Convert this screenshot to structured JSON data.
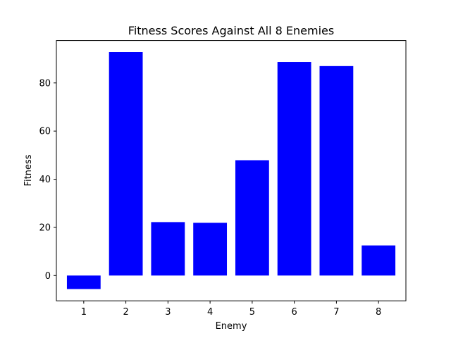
{
  "chart_data": {
    "type": "bar",
    "title": "Fitness Scores Against All 8 Enemies",
    "xlabel": "Enemy",
    "ylabel": "Fitness",
    "categories": [
      "1",
      "2",
      "3",
      "4",
      "5",
      "6",
      "7",
      "8"
    ],
    "values": [
      -5.6,
      92.8,
      22.2,
      21.9,
      47.9,
      88.7,
      87.0,
      12.5
    ],
    "ylim": [
      -10.5,
      97.6
    ],
    "yticks": [
      "0",
      "20",
      "40",
      "60",
      "80"
    ],
    "grid": false,
    "legend": "none",
    "bar_color": "#0000ff"
  }
}
